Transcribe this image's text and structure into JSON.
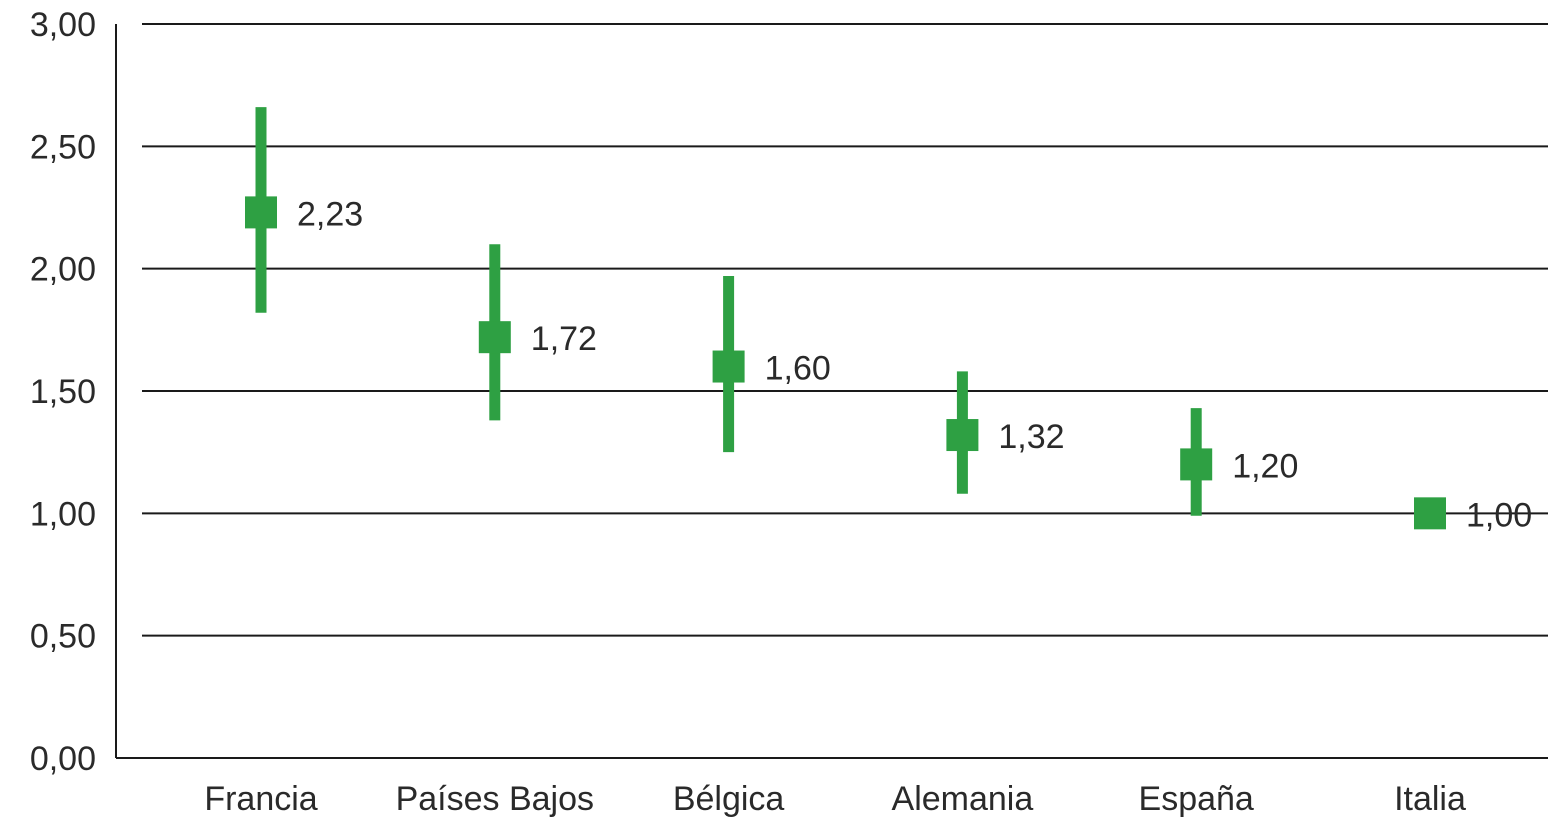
{
  "chart_data": {
    "type": "scatter",
    "title": "",
    "xlabel": "",
    "ylabel": "",
    "ylim": [
      0,
      3
    ],
    "yticks": [
      "0,00",
      "0,50",
      "1,00",
      "1,50",
      "2,00",
      "2,50",
      "3,00"
    ],
    "ytick_values": [
      0,
      0.5,
      1,
      1.5,
      2,
      2.5,
      3
    ],
    "grid": true,
    "categories": [
      "Francia",
      "Países Bajos",
      "Bélgica",
      "Alemania",
      "España",
      "Italia"
    ],
    "values": [
      2.23,
      1.72,
      1.6,
      1.32,
      1.2,
      1.0
    ],
    "lower": [
      1.82,
      1.38,
      1.25,
      1.08,
      0.99,
      1.0
    ],
    "upper": [
      2.66,
      2.1,
      1.97,
      1.58,
      1.43,
      1.0
    ],
    "value_labels": [
      "2,23",
      "1,72",
      "1,60",
      "1,32",
      "1,20",
      "1,00"
    ],
    "color": "#2ea043"
  }
}
